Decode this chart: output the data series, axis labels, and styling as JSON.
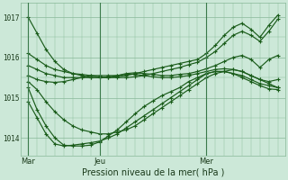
{
  "bg_color": "#cce8d8",
  "grid_color": "#88b898",
  "line_color": "#1a5c1a",
  "marker_color": "#1a5c1a",
  "title": "Pression niveau de la mer( hPa )",
  "yticks": [
    1014,
    1015,
    1016,
    1017
  ],
  "ylim": [
    1013.55,
    1017.35
  ],
  "xtick_labels": [
    "Mar",
    "Jeu",
    "Mer"
  ],
  "xtick_positions": [
    0,
    8,
    20
  ],
  "vline_positions": [
    0,
    8,
    20
  ],
  "n_points": 29,
  "series": [
    [
      1017.0,
      1016.6,
      1016.2,
      1015.9,
      1015.7,
      1015.6,
      1015.55,
      1015.5,
      1015.5,
      1015.5,
      1015.52,
      1015.55,
      1015.6,
      1015.65,
      1015.7,
      1015.75,
      1015.8,
      1015.85,
      1015.9,
      1015.95,
      1016.1,
      1016.3,
      1016.55,
      1016.75,
      1016.85,
      1016.7,
      1016.5,
      1016.8,
      1017.05
    ],
    [
      1016.1,
      1015.95,
      1015.8,
      1015.7,
      1015.65,
      1015.6,
      1015.58,
      1015.55,
      1015.52,
      1015.5,
      1015.5,
      1015.5,
      1015.52,
      1015.55,
      1015.6,
      1015.65,
      1015.7,
      1015.75,
      1015.82,
      1015.88,
      1016.0,
      1016.15,
      1016.35,
      1016.55,
      1016.65,
      1016.55,
      1016.4,
      1016.65,
      1016.95
    ],
    [
      1015.8,
      1015.7,
      1015.6,
      1015.55,
      1015.5,
      1015.5,
      1015.5,
      1015.5,
      1015.5,
      1015.52,
      1015.55,
      1015.6,
      1015.62,
      1015.6,
      1015.58,
      1015.55,
      1015.55,
      1015.58,
      1015.6,
      1015.65,
      1015.72,
      1015.8,
      1015.9,
      1016.0,
      1016.05,
      1015.95,
      1015.75,
      1015.95,
      1016.05
    ],
    [
      1015.55,
      1015.45,
      1015.4,
      1015.38,
      1015.4,
      1015.45,
      1015.5,
      1015.55,
      1015.55,
      1015.55,
      1015.55,
      1015.58,
      1015.58,
      1015.55,
      1015.52,
      1015.5,
      1015.5,
      1015.52,
      1015.55,
      1015.6,
      1015.65,
      1015.7,
      1015.72,
      1015.7,
      1015.65,
      1015.55,
      1015.45,
      1015.4,
      1015.45
    ],
    [
      1015.4,
      1015.2,
      1014.9,
      1014.65,
      1014.45,
      1014.3,
      1014.2,
      1014.15,
      1014.1,
      1014.1,
      1014.15,
      1014.2,
      1014.3,
      1014.45,
      1014.6,
      1014.75,
      1014.9,
      1015.05,
      1015.2,
      1015.35,
      1015.5,
      1015.6,
      1015.65,
      1015.7,
      1015.65,
      1015.55,
      1015.45,
      1015.35,
      1015.25
    ],
    [
      1014.9,
      1014.5,
      1014.1,
      1013.85,
      1013.8,
      1013.82,
      1013.85,
      1013.88,
      1013.92,
      1014.0,
      1014.1,
      1014.25,
      1014.4,
      1014.55,
      1014.7,
      1014.85,
      1015.0,
      1015.15,
      1015.3,
      1015.45,
      1015.6,
      1015.65,
      1015.65,
      1015.6,
      1015.55,
      1015.45,
      1015.35,
      1015.3,
      1015.25
    ],
    [
      1015.25,
      1014.7,
      1014.3,
      1014.0,
      1013.82,
      1013.8,
      1013.8,
      1013.82,
      1013.9,
      1014.05,
      1014.2,
      1014.4,
      1014.6,
      1014.78,
      1014.92,
      1015.05,
      1015.15,
      1015.25,
      1015.4,
      1015.5,
      1015.6,
      1015.65,
      1015.65,
      1015.6,
      1015.5,
      1015.4,
      1015.3,
      1015.22,
      1015.2
    ]
  ]
}
